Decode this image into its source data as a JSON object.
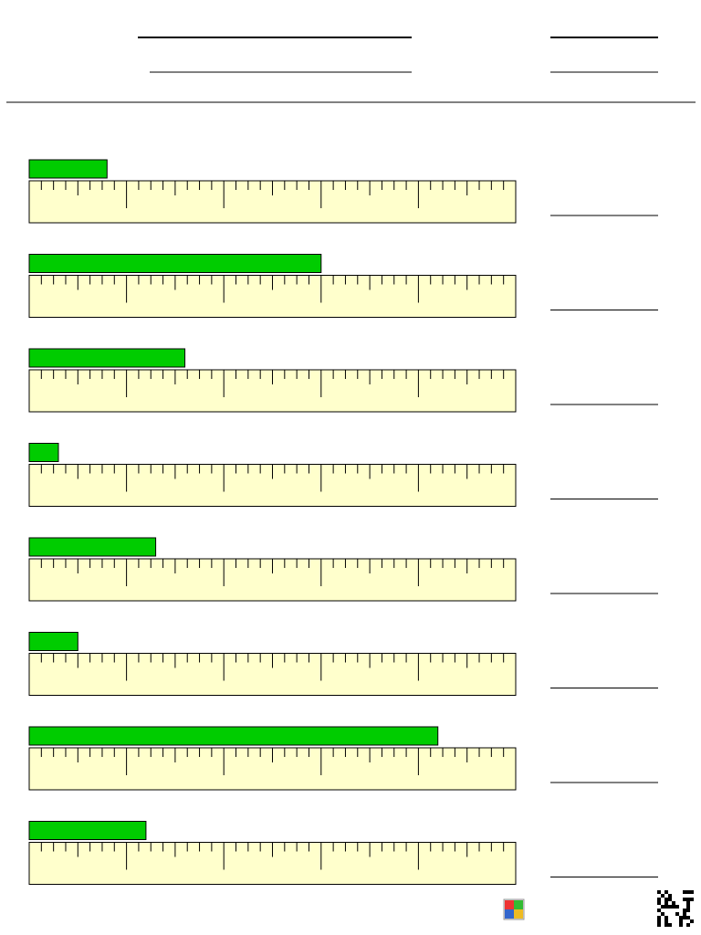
{
  "worksheet": {
    "ruler": {
      "length": 5,
      "subdivisions": 8
    },
    "bars": [
      0.8,
      3,
      1.6,
      0.3,
      1.3,
      0.5,
      4.2,
      1.2
    ]
  }
}
